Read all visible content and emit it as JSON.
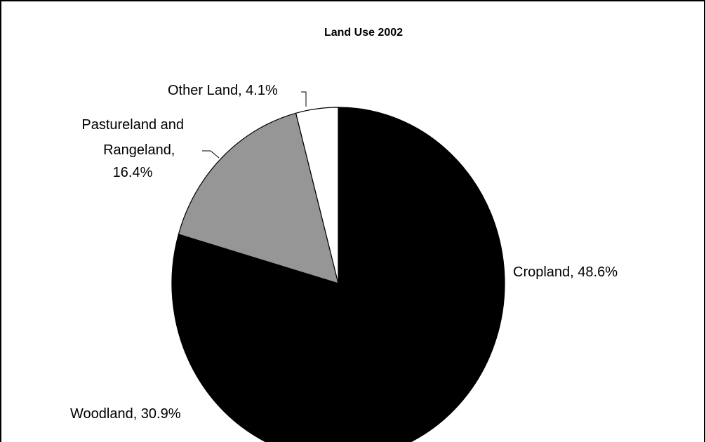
{
  "chart_data": {
    "type": "pie",
    "title": "Land Use 2002",
    "slices": [
      {
        "label": "Cropland",
        "value": 48.6,
        "display": "Cropland, 48.6%",
        "color": "#000000"
      },
      {
        "label": "Woodland",
        "value": 30.9,
        "display": "Woodland, 30.9%",
        "color": "#000000"
      },
      {
        "label": "Pastureland and Rangeland",
        "value": 16.4,
        "display_lines": [
          "Pastureland and",
          "Rangeland,",
          "16.4%"
        ],
        "color": "#969696"
      },
      {
        "label": "Other Land",
        "value": 4.1,
        "display": "Other Land, 4.1%",
        "color": "#ffffff"
      }
    ],
    "start_angle": "12 o'clock",
    "direction": "clockwise",
    "legend": "none"
  }
}
